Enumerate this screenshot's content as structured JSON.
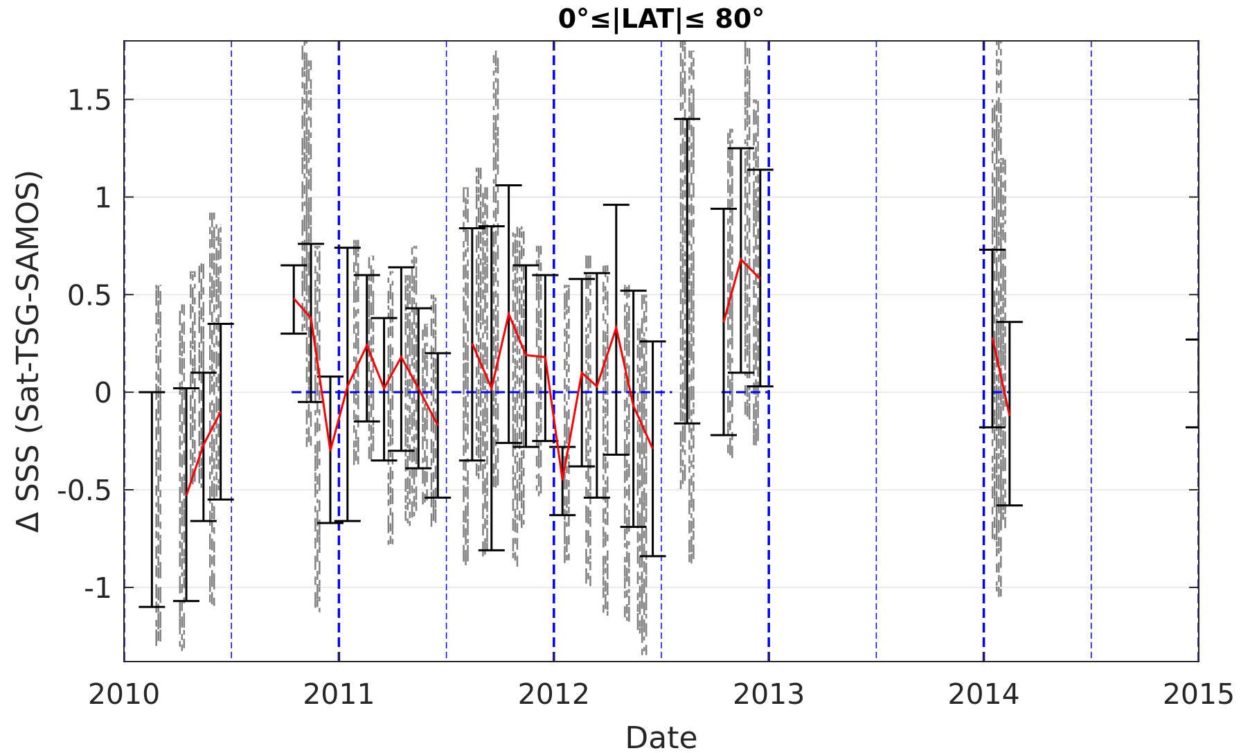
{
  "chart_data": {
    "type": "scatter",
    "title": "0°≤|LAT|≤ 80°",
    "xlabel": "Date",
    "ylabel": "Δ SSS (Sat-TSG-SAMOS)",
    "xlim": [
      2010,
      2015
    ],
    "ylim": [
      -1.38,
      1.8
    ],
    "x_ticks": [
      2010,
      2011,
      2012,
      2013,
      2014,
      2015
    ],
    "x_tick_labels": [
      "2010",
      "2011",
      "2012",
      "2013",
      "2014",
      "2015"
    ],
    "y_ticks": [
      -1,
      -0.5,
      0,
      0.5,
      1,
      1.5
    ],
    "y_tick_labels": [
      "-1",
      "-0.5",
      "0",
      "0.5",
      "1",
      "1.5"
    ],
    "grid": "horizontal",
    "legend": "none",
    "colors": {
      "scatter": "#808080",
      "mean_line": "#ff0000",
      "error_bar": "#000000",
      "reference_lines": "#0000ff",
      "grid": "#dcdcdc",
      "axes": "#262626"
    },
    "year_boundaries": [
      2010,
      2011,
      2012,
      2013,
      2014,
      2015
    ],
    "half_year_marks": [
      2010.5,
      2011.5,
      2012.5,
      2013.5,
      2014.5
    ],
    "zero_reference_segments": [
      [
        2010.78,
        2012.55
      ],
      [
        2012.78,
        2013.0
      ],
      [
        2014.04,
        2014.12
      ]
    ],
    "error_bars": [
      {
        "x": 2010.13,
        "low": -1.1,
        "high": 0.0
      },
      {
        "x": 2010.29,
        "low": -1.07,
        "high": 0.02
      },
      {
        "x": 2010.37,
        "low": -0.66,
        "high": 0.1
      },
      {
        "x": 2010.45,
        "low": -0.55,
        "high": 0.35
      },
      {
        "x": 2010.79,
        "low": 0.3,
        "high": 0.65
      },
      {
        "x": 2010.87,
        "low": -0.05,
        "high": 0.76
      },
      {
        "x": 2010.96,
        "low": -0.67,
        "high": 0.08
      },
      {
        "x": 2011.04,
        "low": -0.66,
        "high": 0.74
      },
      {
        "x": 2011.13,
        "low": -0.15,
        "high": 0.6
      },
      {
        "x": 2011.21,
        "low": -0.35,
        "high": 0.38
      },
      {
        "x": 2011.29,
        "low": -0.3,
        "high": 0.64
      },
      {
        "x": 2011.37,
        "low": -0.39,
        "high": 0.43
      },
      {
        "x": 2011.46,
        "low": -0.54,
        "high": 0.2
      },
      {
        "x": 2011.62,
        "low": -0.35,
        "high": 0.84
      },
      {
        "x": 2011.71,
        "low": -0.81,
        "high": 0.85
      },
      {
        "x": 2011.79,
        "low": -0.26,
        "high": 1.06
      },
      {
        "x": 2011.87,
        "low": -0.28,
        "high": 0.65
      },
      {
        "x": 2011.96,
        "low": -0.25,
        "high": 0.6
      },
      {
        "x": 2012.04,
        "low": -0.63,
        "high": -0.28
      },
      {
        "x": 2012.13,
        "low": -0.38,
        "high": 0.58
      },
      {
        "x": 2012.2,
        "low": -0.54,
        "high": 0.61
      },
      {
        "x": 2012.29,
        "low": -0.32,
        "high": 0.96
      },
      {
        "x": 2012.37,
        "low": -0.69,
        "high": 0.52
      },
      {
        "x": 2012.46,
        "low": -0.84,
        "high": 0.26
      },
      {
        "x": 2012.62,
        "low": -0.16,
        "high": 1.4
      },
      {
        "x": 2012.79,
        "low": -0.22,
        "high": 0.94
      },
      {
        "x": 2012.87,
        "low": 0.1,
        "high": 1.25
      },
      {
        "x": 2012.96,
        "low": 0.03,
        "high": 1.14
      },
      {
        "x": 2014.04,
        "low": -0.18,
        "high": 0.73
      },
      {
        "x": 2014.12,
        "low": -0.58,
        "high": 0.36
      },
      {
        "x": 2015.0,
        "low": -0.18,
        "high": 0.27
      }
    ],
    "mean_line_segments": [
      {
        "x": [
          2010.29,
          2010.37,
          2010.45
        ],
        "y": [
          -0.53,
          -0.27,
          -0.1
        ]
      },
      {
        "x": [
          2010.79,
          2010.87,
          2010.96,
          2011.04,
          2011.13,
          2011.21,
          2011.29,
          2011.37,
          2011.46
        ],
        "y": [
          0.48,
          0.38,
          -0.3,
          0.03,
          0.24,
          0.02,
          0.18,
          0.02,
          -0.17
        ]
      },
      {
        "x": [
          2011.62,
          2011.71,
          2011.79,
          2011.87,
          2011.96,
          2012.04,
          2012.13,
          2012.2,
          2012.29,
          2012.37,
          2012.46
        ],
        "y": [
          0.25,
          0.02,
          0.4,
          0.19,
          0.18,
          -0.45,
          0.1,
          0.03,
          0.33,
          -0.07,
          -0.29
        ]
      },
      {
        "x": [
          2012.79,
          2012.87,
          2012.96
        ],
        "y": [
          0.36,
          0.68,
          0.58
        ]
      },
      {
        "x": [
          2014.04,
          2014.12
        ],
        "y": [
          0.28,
          -0.12
        ]
      }
    ],
    "scatter_columns": [
      {
        "x": 2010.16,
        "low": -1.3,
        "high": 0.55
      },
      {
        "x": 2010.27,
        "low": -1.35,
        "high": 0.45
      },
      {
        "x": 2010.32,
        "low": -0.5,
        "high": 0.62
      },
      {
        "x": 2010.36,
        "low": -0.5,
        "high": 0.66
      },
      {
        "x": 2010.41,
        "low": -1.1,
        "high": 0.92
      },
      {
        "x": 2010.44,
        "low": -0.55,
        "high": 0.86
      },
      {
        "x": 2010.84,
        "low": 0.3,
        "high": 1.8
      },
      {
        "x": 2010.86,
        "low": -0.3,
        "high": 1.7
      },
      {
        "x": 2010.9,
        "low": -1.15,
        "high": 0.75
      },
      {
        "x": 2011.08,
        "low": -0.4,
        "high": 0.78
      },
      {
        "x": 2011.15,
        "low": -0.35,
        "high": 0.7
      },
      {
        "x": 2011.24,
        "low": -0.8,
        "high": 0.62
      },
      {
        "x": 2011.32,
        "low": -0.7,
        "high": 0.6
      },
      {
        "x": 2011.35,
        "low": -0.65,
        "high": 0.75
      },
      {
        "x": 2011.4,
        "low": -0.6,
        "high": 0.35
      },
      {
        "x": 2011.44,
        "low": -0.7,
        "high": 0.5
      },
      {
        "x": 2011.59,
        "low": -0.9,
        "high": 1.05
      },
      {
        "x": 2011.65,
        "low": -0.45,
        "high": 1.15
      },
      {
        "x": 2011.68,
        "low": -0.85,
        "high": 1.05
      },
      {
        "x": 2011.73,
        "low": -0.5,
        "high": 1.75
      },
      {
        "x": 2011.82,
        "low": -0.9,
        "high": 0.85
      },
      {
        "x": 2011.85,
        "low": -0.7,
        "high": 0.85
      },
      {
        "x": 2011.93,
        "low": -0.55,
        "high": 0.75
      },
      {
        "x": 2012.06,
        "low": -0.9,
        "high": 0.55
      },
      {
        "x": 2012.16,
        "low": -1.0,
        "high": 0.7
      },
      {
        "x": 2012.24,
        "low": -1.15,
        "high": 0.65
      },
      {
        "x": 2012.34,
        "low": -1.2,
        "high": 0.55
      },
      {
        "x": 2012.4,
        "low": -1.25,
        "high": 0.35
      },
      {
        "x": 2012.42,
        "low": -1.35,
        "high": 0.5
      },
      {
        "x": 2012.6,
        "low": -0.5,
        "high": 1.8
      },
      {
        "x": 2012.64,
        "low": -0.9,
        "high": 1.75
      },
      {
        "x": 2012.82,
        "low": -0.35,
        "high": 1.35
      },
      {
        "x": 2012.9,
        "low": -0.15,
        "high": 1.8
      },
      {
        "x": 2012.94,
        "low": -0.3,
        "high": 1.5
      },
      {
        "x": 2014.05,
        "low": -0.8,
        "high": 1.5
      },
      {
        "x": 2014.07,
        "low": -1.05,
        "high": 1.8
      },
      {
        "x": 2014.09,
        "low": -0.7,
        "high": 1.2
      }
    ]
  }
}
